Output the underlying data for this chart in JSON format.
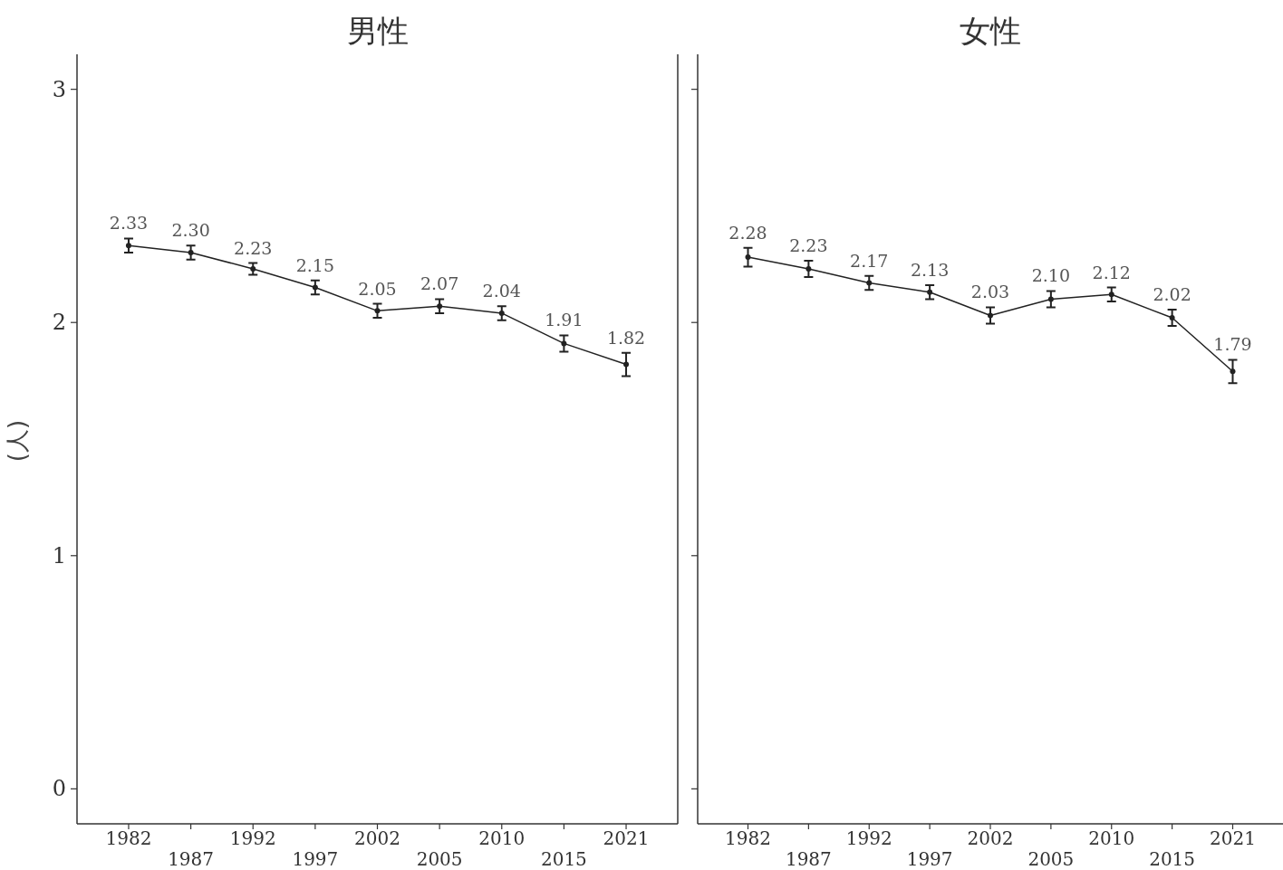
{
  "chart_data": [
    {
      "type": "line",
      "title": "男性",
      "ylabel": "(人)",
      "categories": [
        "1982",
        "1987",
        "1992",
        "1997",
        "2002",
        "2005",
        "2010",
        "2015",
        "2021"
      ],
      "values": [
        2.33,
        2.3,
        2.23,
        2.15,
        2.05,
        2.07,
        2.04,
        1.91,
        1.82
      ],
      "errors": [
        0.03,
        0.03,
        0.025,
        0.03,
        0.03,
        0.03,
        0.03,
        0.035,
        0.05
      ],
      "value_labels": [
        "2.33",
        "2.30",
        "2.23",
        "2.15",
        "2.05",
        "2.07",
        "2.04",
        "1.91",
        "1.82"
      ],
      "color": "#222222",
      "marker": "circle",
      "ylim": [
        -0.15,
        3.15
      ],
      "yticks": [
        0,
        1,
        2,
        3
      ]
    },
    {
      "type": "line",
      "title": "女性",
      "categories": [
        "1982",
        "1987",
        "1992",
        "1997",
        "2002",
        "2005",
        "2010",
        "2015",
        "2021"
      ],
      "values": [
        2.28,
        2.23,
        2.17,
        2.13,
        2.03,
        2.1,
        2.12,
        2.02,
        1.79
      ],
      "errors": [
        0.04,
        0.035,
        0.03,
        0.03,
        0.035,
        0.035,
        0.03,
        0.035,
        0.05
      ],
      "value_labels": [
        "2.28",
        "2.23",
        "2.17",
        "2.13",
        "2.03",
        "2.10",
        "2.12",
        "2.02",
        "1.79"
      ],
      "color": "#222222",
      "marker": "circle",
      "ylim": [
        -0.15,
        3.15
      ],
      "yticks": [
        0,
        1,
        2,
        3
      ],
      "tick_labels": "x"
    }
  ]
}
